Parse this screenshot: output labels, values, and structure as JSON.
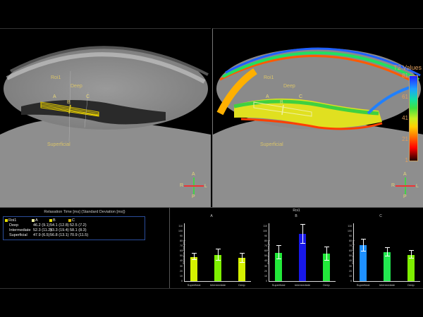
{
  "viewers": {
    "left": {
      "labels": {
        "roi": "Roi1",
        "deep": "Deep",
        "superficial": "Superficial",
        "a": "A",
        "b": "B",
        "c": "C"
      },
      "orientation": {
        "top": "A",
        "bottom": "P",
        "left": "R",
        "right": "L"
      }
    },
    "right": {
      "labels": {
        "roi": "Roi1",
        "deep": "Deep",
        "superficial": "Superficial",
        "a": "A",
        "b": "B",
        "c": "C"
      },
      "orientation": {
        "top": "A",
        "bottom": "P",
        "left": "R",
        "right": "L"
      },
      "colorbar": {
        "title": "T2 Values",
        "ticks": [
          "81",
          "61",
          "41",
          "21",
          "1"
        ]
      }
    }
  },
  "table": {
    "title": "Relaxation Time [ms] (Standard Deviation [ms])",
    "headers": [
      "Roi1",
      "A",
      "B",
      "C"
    ],
    "header_colors": [
      "#e8e000",
      "#f0f0a0",
      "#e8e000",
      "#d8b800"
    ],
    "rows": [
      {
        "label": "Deep",
        "a": "46.2 (9.1)",
        "b": "54.1 (12.8)",
        "c": "52.5 (7.2)"
      },
      {
        "label": "Intermediate",
        "a": "52.3 (11.2)",
        "b": "93.3 (19.4)",
        "c": "58.1 (8.3)"
      },
      {
        "label": "Superficial",
        "a": "47.9 (6.5)",
        "b": "56.8 (13.1)",
        "c": "70.9 (11.5)"
      }
    ]
  },
  "charts": {
    "title": "Roi1",
    "ylabel": "Relaxation Time [ms]",
    "yticks": [
      "110",
      "100",
      "90",
      "80",
      "70",
      "60",
      "50",
      "40",
      "30",
      "20",
      "10",
      "0"
    ],
    "xcats": [
      "Superficial",
      "Intermediate",
      "Deep"
    ]
  },
  "chart_data": [
    {
      "type": "bar",
      "title": "A",
      "categories": [
        "Superficial",
        "Intermediate",
        "Deep"
      ],
      "values": [
        47.9,
        52.3,
        46.2
      ],
      "errors": [
        6.5,
        11.2,
        9.1
      ],
      "colors": [
        "#d4f000",
        "#7ef000",
        "#d4f000"
      ],
      "ylabel": "Relaxation Time [ms]",
      "ylim": [
        0,
        115
      ]
    },
    {
      "type": "bar",
      "title": "B",
      "categories": [
        "Superficial",
        "Intermediate",
        "Deep"
      ],
      "values": [
        56.8,
        93.3,
        54.1
      ],
      "errors": [
        13.1,
        19.4,
        12.8
      ],
      "colors": [
        "#22e83a",
        "#1818e8",
        "#22e83a"
      ],
      "ylabel": "Relaxation Time [ms]",
      "ylim": [
        0,
        115
      ]
    },
    {
      "type": "bar",
      "title": "C",
      "categories": [
        "Superficial",
        "Intermediate",
        "Deep"
      ],
      "values": [
        70.9,
        58.1,
        52.5
      ],
      "errors": [
        11.5,
        8.3,
        7.2
      ],
      "colors": [
        "#1e90ff",
        "#22e850",
        "#7ef000"
      ],
      "ylabel": "Relaxation Time [ms]",
      "ylim": [
        0,
        115
      ]
    }
  ]
}
